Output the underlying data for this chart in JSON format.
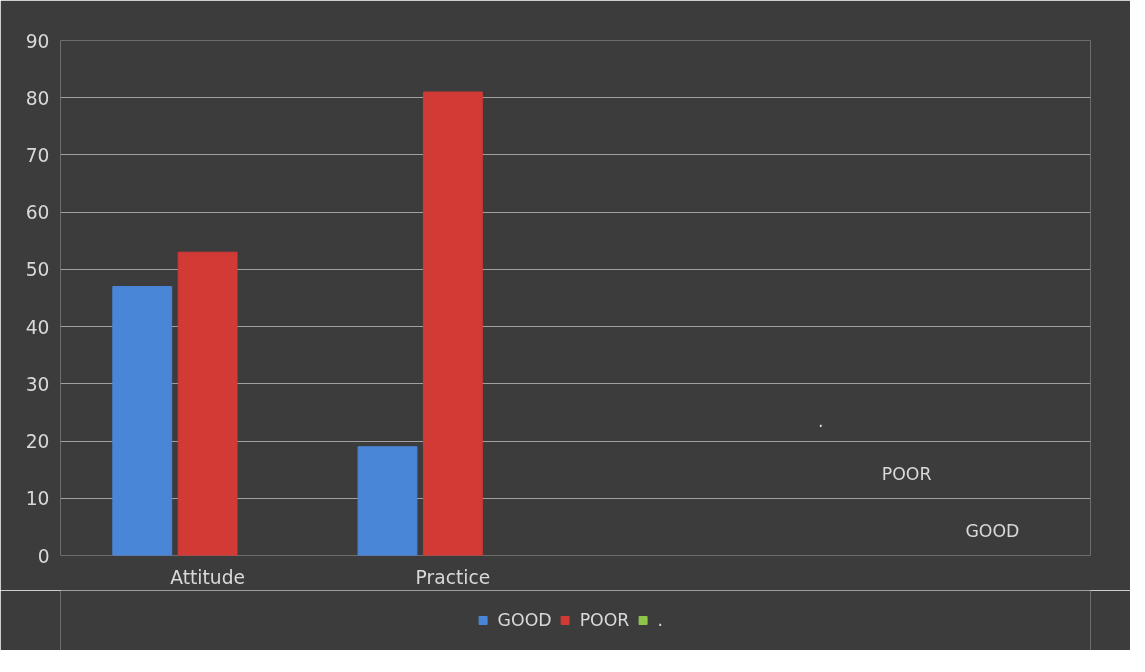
{
  "chart_data": {
    "type": "bar",
    "categories": [
      "Attitude",
      "Practice"
    ],
    "series": [
      {
        "name": "GOOD",
        "color": "#4a86d8",
        "values": [
          47,
          19
        ]
      },
      {
        "name": "POOR",
        "color": "#d23a36",
        "values": [
          53,
          81
        ]
      },
      {
        "name": ".",
        "color": "#8fc64a",
        "values": [
          null,
          null
        ]
      }
    ],
    "ylim": [
      0,
      90
    ],
    "yticks": [
      0,
      10,
      20,
      30,
      40,
      50,
      60,
      70,
      80,
      90
    ],
    "grid": "y",
    "legend": "bottom",
    "annotations": [
      "GOOD",
      "POOR",
      "."
    ]
  }
}
